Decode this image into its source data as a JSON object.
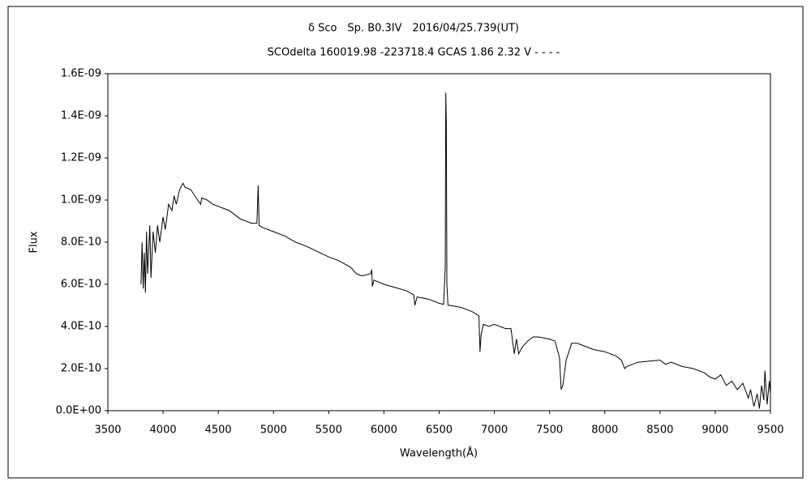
{
  "chart_data": {
    "type": "line",
    "title": "δ Sco　Sp. B0.3IV　2016/04/25.739(UT)",
    "subtitle": "SCOdelta 160019.98 -223718.4 GCAS 1.86 2.32 V - - - -",
    "x_label": "Wavelength(Å)",
    "y_label": "Flux",
    "color": "#000000",
    "grid": false,
    "xlim": [
      3500,
      9500
    ],
    "xticks": [
      3500,
      4000,
      4500,
      5000,
      5500,
      6000,
      6500,
      7000,
      7500,
      8000,
      8500,
      9000,
      9500
    ],
    "ylim": [
      0,
      1.6e-09
    ],
    "yticks": [
      {
        "value": 0,
        "label": "0.0E+00"
      },
      {
        "value": 2e-10,
        "label": "2.0E-10"
      },
      {
        "value": 4e-10,
        "label": "4.0E-10"
      },
      {
        "value": 6e-10,
        "label": "6.0E-10"
      },
      {
        "value": 8e-10,
        "label": "8.0E-10"
      },
      {
        "value": 1e-09,
        "label": "1.0E-09"
      },
      {
        "value": 1.2e-09,
        "label": "1.2E-09"
      },
      {
        "value": 1.4e-09,
        "label": "1.4E-09"
      },
      {
        "value": 1.6e-09,
        "label": "1.6E-09"
      }
    ],
    "x": [
      3800,
      3810,
      3820,
      3830,
      3840,
      3850,
      3860,
      3880,
      3890,
      3910,
      3930,
      3950,
      3970,
      4000,
      4020,
      4050,
      4080,
      4100,
      4120,
      4150,
      4180,
      4200,
      4250,
      4300,
      4340,
      4350,
      4400,
      4450,
      4500,
      4550,
      4600,
      4650,
      4700,
      4750,
      4800,
      4850,
      4861,
      4870,
      4900,
      5000,
      5100,
      5200,
      5300,
      5400,
      5500,
      5600,
      5700,
      5750,
      5800,
      5880,
      5890,
      5895,
      5910,
      6000,
      6100,
      6200,
      6270,
      6280,
      6300,
      6400,
      6500,
      6540,
      6555,
      6560,
      6565,
      6570,
      6580,
      6600,
      6700,
      6800,
      6860,
      6870,
      6880,
      6900,
      6950,
      7000,
      7100,
      7150,
      7180,
      7200,
      7220,
      7250,
      7300,
      7350,
      7400,
      7500,
      7550,
      7590,
      7605,
      7620,
      7650,
      7700,
      7750,
      7800,
      7900,
      8000,
      8100,
      8150,
      8180,
      8200,
      8250,
      8300,
      8400,
      8500,
      8550,
      8600,
      8700,
      8800,
      8900,
      8950,
      9000,
      9050,
      9100,
      9150,
      9200,
      9250,
      9300,
      9320,
      9350,
      9380,
      9400,
      9420,
      9440,
      9450,
      9470,
      9490,
      9500
    ],
    "values": [
      6e-10,
      8e-10,
      5.8e-10,
      7.5e-10,
      5.6e-10,
      8.5e-10,
      6.5e-10,
      8.8e-10,
      6.3e-10,
      8.5e-10,
      7.5e-10,
      8.8e-10,
      8e-10,
      9.2e-10,
      8.6e-10,
      9.8e-10,
      9.5e-10,
      1.02e-09,
      9.8e-10,
      1.05e-09,
      1.08e-09,
      1.06e-09,
      1.05e-09,
      1.01e-09,
      9.8e-10,
      1.01e-09,
      1e-09,
      9.8e-10,
      9.7e-10,
      9.6e-10,
      9.5e-10,
      9.3e-10,
      9.1e-10,
      9e-10,
      8.9e-10,
      8.9e-10,
      1.07e-09,
      8.8e-10,
      8.7e-10,
      8.5e-10,
      8.3e-10,
      8e-10,
      7.8e-10,
      7.55e-10,
      7.3e-10,
      7.1e-10,
      6.8e-10,
      6.5e-10,
      6.4e-10,
      6.5e-10,
      6.7e-10,
      5.9e-10,
      6.2e-10,
      6e-10,
      5.85e-10,
      5.7e-10,
      5.5e-10,
      5e-10,
      5.4e-10,
      5.3e-10,
      5.1e-10,
      5.05e-10,
      6.8e-10,
      1.51e-09,
      1.37e-09,
      6e-10,
      5e-10,
      5e-10,
      4.9e-10,
      4.7e-10,
      4.5e-10,
      2.8e-10,
      3.6e-10,
      4.1e-10,
      4e-10,
      4.1e-10,
      3.9e-10,
      3.9e-10,
      2.7e-10,
      3.4e-10,
      2.7e-10,
      3e-10,
      3.3e-10,
      3.5e-10,
      3.5e-10,
      3.4e-10,
      3.3e-10,
      2.5e-10,
      1e-10,
      1.2e-10,
      2.4e-10,
      3.2e-10,
      3.2e-10,
      3.1e-10,
      2.9e-10,
      2.8e-10,
      2.6e-10,
      2.4e-10,
      2e-10,
      2.1e-10,
      2.2e-10,
      2.3e-10,
      2.35e-10,
      2.4e-10,
      2.2e-10,
      2.3e-10,
      2.1e-10,
      2e-10,
      1.8e-10,
      1.6e-10,
      1.5e-10,
      1.7e-10,
      1.2e-10,
      1.4e-10,
      1e-10,
      1.3e-10,
      6e-11,
      1e-10,
      2e-11,
      8e-11,
      1e-11,
      1.2e-10,
      5e-11,
      1.9e-10,
      3e-11,
      1.4e-10,
      8e-11
    ]
  }
}
